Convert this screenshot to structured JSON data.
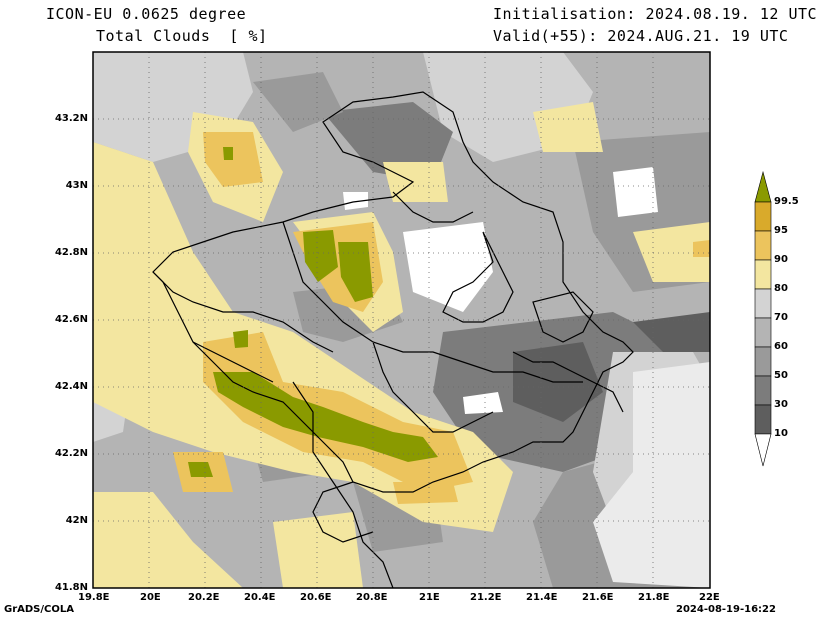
{
  "header": {
    "model": "ICON-EU 0.0625 degree",
    "field": "Total Clouds  [ %]",
    "init": "Initialisation: 2024.08.19. 12 UTC",
    "valid": "Valid(+55): 2024.AUG.21. 19 UTC"
  },
  "axes": {
    "y_ticks": [
      "43.2N",
      "43N",
      "42.8N",
      "42.6N",
      "42.4N",
      "42.2N",
      "42N",
      "41.8N"
    ],
    "x_ticks": [
      "19.8E",
      "20E",
      "20.2E",
      "20.4E",
      "20.6E",
      "20.8E",
      "21E",
      "21.2E",
      "21.4E",
      "21.6E",
      "21.8E",
      "22E"
    ]
  },
  "colorbar": {
    "levels": [
      "99.5",
      "95",
      "90",
      "80",
      "70",
      "60",
      "50",
      "30",
      "10"
    ],
    "colors": [
      "#8a9a00",
      "#d9aa2b",
      "#ecc45d",
      "#f3e6a0",
      "#d3d3d3",
      "#b4b4b4",
      "#9a9a9a",
      "#7c7c7c",
      "#5e5e5e",
      "#ffffff"
    ]
  },
  "footer": {
    "left": "GrADS/COLA",
    "right": "2024-08-19-16:22"
  }
}
